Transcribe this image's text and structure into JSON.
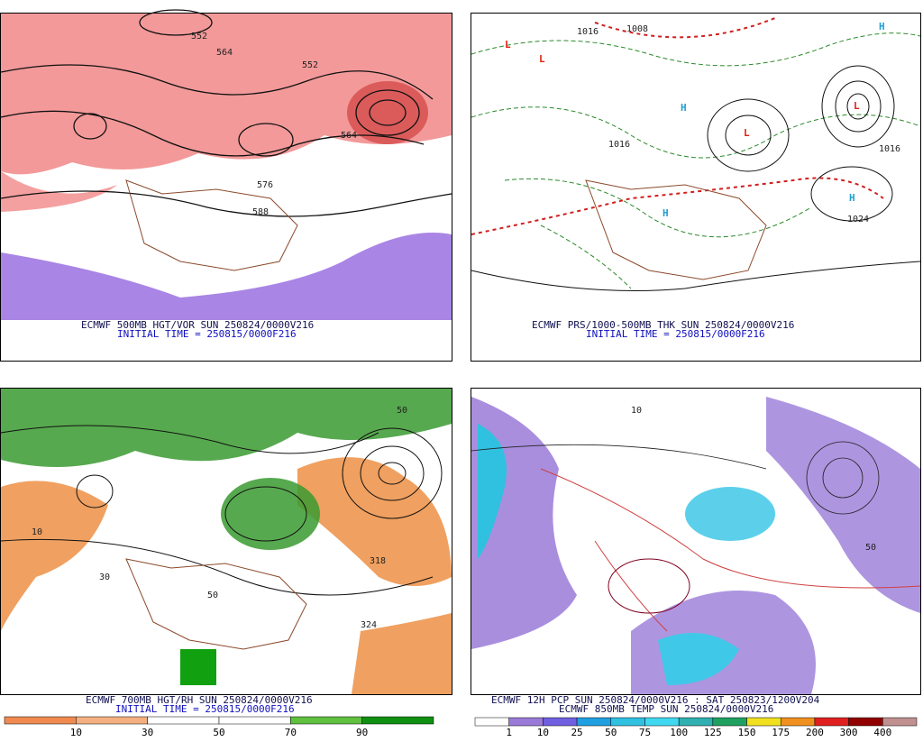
{
  "panels": [
    {
      "title": "ECMWF 500MB HGT/VOR SUN 250824/0000V216",
      "subtitle": "INITIAL TIME = 250815/0000F216",
      "contour_labels": [
        "552",
        "564",
        "576",
        "588",
        "552",
        "564"
      ]
    },
    {
      "title": "ECMWF PRS/1000-500MB THK SUN 250824/0000V216",
      "subtitle": "INITIAL TIME = 250815/0000F216",
      "contour_labels": [
        "1016",
        "1008",
        "1016",
        "1024",
        "1016"
      ],
      "centers": [
        "L",
        "L",
        "H",
        "L",
        "H",
        "L",
        "H",
        "H"
      ]
    },
    {
      "title": "ECMWF 700MB HGT/RH SUN 250824/0000V216",
      "subtitle": "INITIAL TIME = 250815/0000F216",
      "contour_labels": [
        "50",
        "10",
        "50",
        "30",
        "318",
        "324"
      ],
      "colorbar": [
        "10",
        "30",
        "50",
        "70",
        "90"
      ]
    },
    {
      "title": "ECMWF 12H PCP SUN 250824/0000V216 : SAT 250823/1200V204",
      "subtitle": "ECMWF 850MB TEMP SUN 250824/0000V216",
      "contour_labels": [
        "50",
        "10"
      ],
      "colorbar": [
        "1",
        "10",
        "25",
        "50",
        "75",
        "100",
        "125",
        "150",
        "175",
        "200",
        "300",
        "400"
      ]
    }
  ]
}
